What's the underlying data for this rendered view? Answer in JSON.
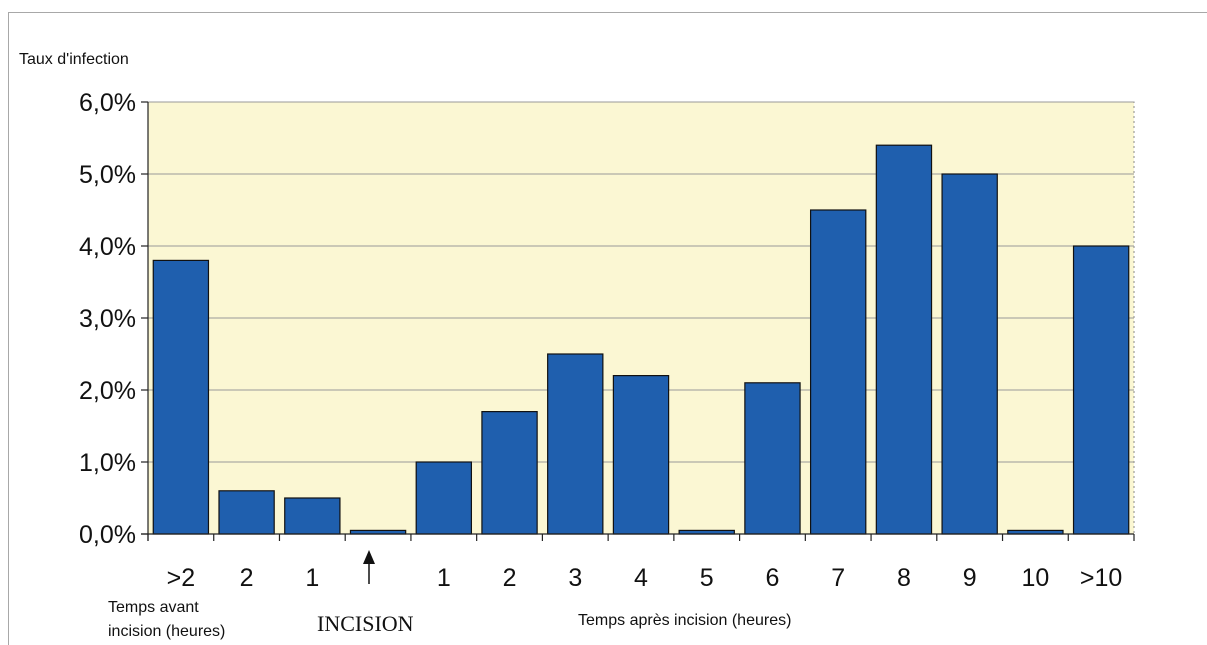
{
  "chart_data": {
    "type": "bar",
    "ylabel": "Taux d'infection",
    "ylim": [
      0,
      0.06
    ],
    "yticks": [
      0,
      0.01,
      0.02,
      0.03,
      0.04,
      0.05,
      0.06
    ],
    "ytick_labels": [
      "0,0%",
      "1,0%",
      "2,0%",
      "3,0%",
      "4,0%",
      "5,0%",
      "6,0%"
    ],
    "categories": [
      ">2",
      "2",
      "1",
      "INCISION",
      "1",
      "2",
      "3",
      "4",
      "5",
      "6",
      "7",
      "8",
      "9",
      "10",
      ">10"
    ],
    "tick_labels": [
      ">2",
      "2",
      "1",
      "",
      "1",
      "2",
      "3",
      "4",
      "5",
      "6",
      "7",
      "8",
      "9",
      "10",
      ">10"
    ],
    "values": [
      0.038,
      0.006,
      0.005,
      0.0005,
      0.01,
      0.017,
      0.025,
      0.022,
      0.0005,
      0.021,
      0.045,
      0.054,
      0.05,
      0.0005,
      0.04
    ],
    "bar_color": "#1f5fae",
    "plot_background": "#fbf7d3",
    "grid": true,
    "incision_label": "INCISION",
    "before_label_line1": "Temps avant",
    "before_label_line2": "incision (heures)",
    "after_label": "Temps après incision (heures)"
  }
}
